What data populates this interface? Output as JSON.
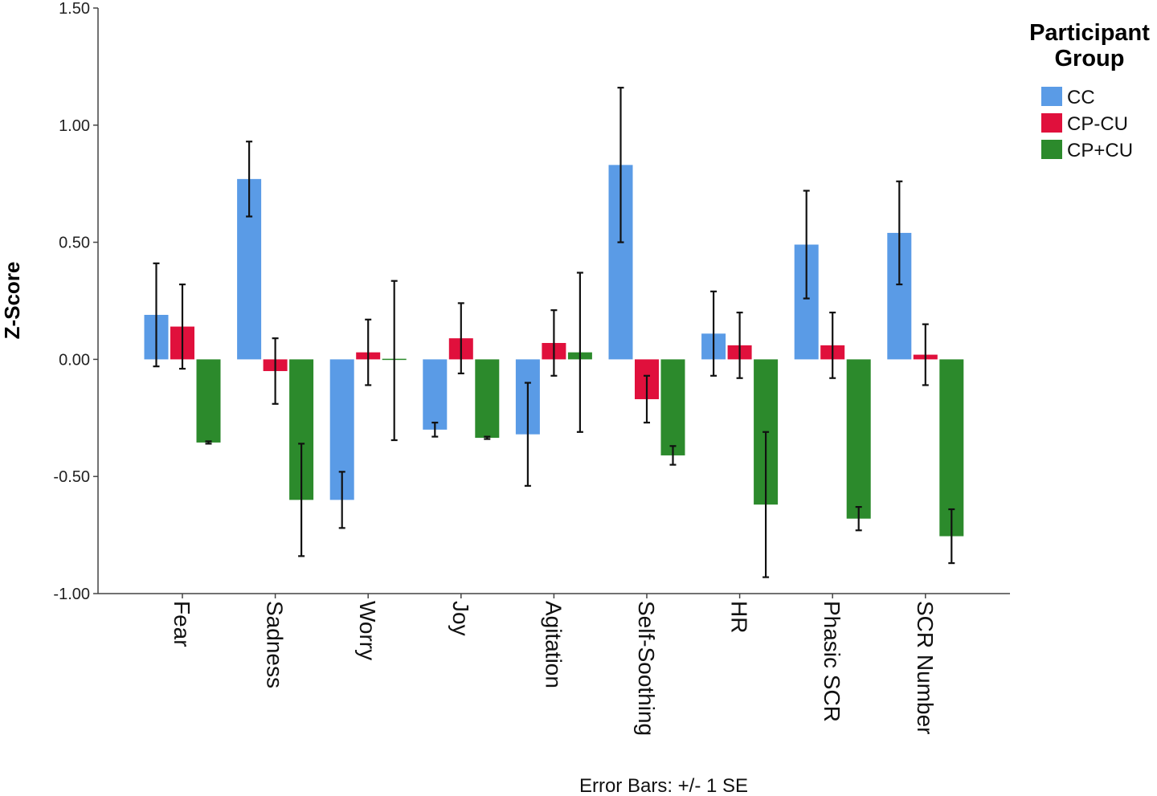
{
  "chart_data": {
    "type": "bar",
    "categories": [
      "Fear",
      "Sadness",
      "Worry",
      "Joy",
      "Agitation",
      "Self-Soothing",
      "HR",
      "Phasic SCR",
      "SCR Number"
    ],
    "series": [
      {
        "name": "CC",
        "color": "#5a9be6",
        "values": [
          0.19,
          0.77,
          -0.6,
          -0.3,
          -0.32,
          0.83,
          0.11,
          0.49,
          0.54
        ],
        "se": [
          0.22,
          0.16,
          0.12,
          0.03,
          0.22,
          0.33,
          0.18,
          0.23,
          0.22
        ]
      },
      {
        "name": "CP-CU",
        "color": "#e0103c",
        "values": [
          0.14,
          -0.05,
          0.03,
          0.09,
          0.07,
          -0.17,
          0.06,
          0.06,
          0.02
        ],
        "se": [
          0.18,
          0.14,
          0.14,
          0.15,
          0.14,
          0.1,
          0.14,
          0.14,
          0.13
        ]
      },
      {
        "name": "CP+CU",
        "color": "#2c8a2c",
        "values": [
          -0.355,
          -0.6,
          -0.005,
          -0.335,
          0.03,
          -0.41,
          -0.62,
          -0.68,
          -0.755
        ],
        "se": [
          0.005,
          0.24,
          0.34,
          0.005,
          0.34,
          0.04,
          0.31,
          0.05,
          0.115
        ]
      }
    ],
    "ylabel": "Z-Score",
    "yticks": [
      "1.50",
      "1.00",
      "0.50",
      "0.00",
      "-0.50",
      "-1.00"
    ],
    "ylim": [
      -1.0,
      1.5
    ],
    "legend": {
      "title_line1": "Participant",
      "title_line2": "Group",
      "placement": "right"
    },
    "note": "Error Bars:  +/- 1 SE"
  }
}
